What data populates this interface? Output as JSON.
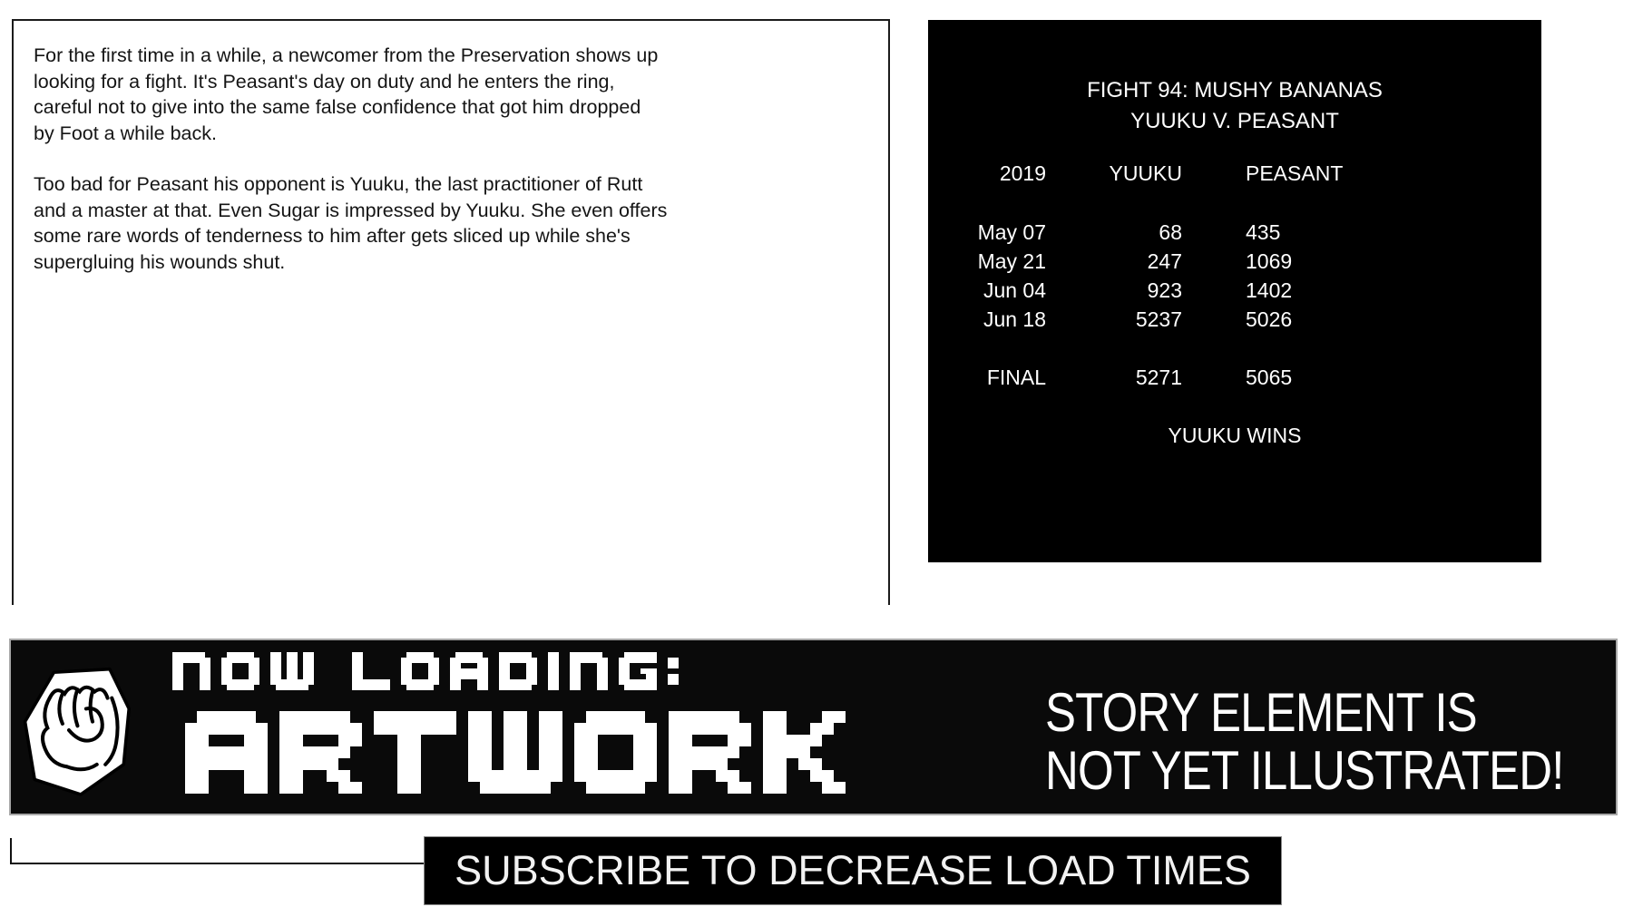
{
  "textbox": {
    "p1": [
      "For the first time in a while, a newcomer from the Preservation shows up",
      "looking for a fight. It's Peasant's day on duty and he enters the ring,",
      "careful not to give into the same false confidence that got him dropped",
      "by Foot a while back."
    ],
    "p2": [
      "Too bad for Peasant his opponent is Yuuku, the last practitioner of Rutt",
      "and a master at that. Even Sugar is impressed by Yuuku. She even offers",
      "some rare words of tenderness to him after gets sliced up while she's",
      "supergluing his wounds shut."
    ]
  },
  "scoreboard": {
    "title_line1": "FIGHT 94: MUSHY BANANAS",
    "title_line2": "YUUKU V. PEASANT",
    "columns": {
      "year": "2019",
      "fighter1": "YUUKU",
      "fighter2": "PEASANT"
    },
    "rows": [
      {
        "date": "May 07",
        "yuuku": "68",
        "peasant": "435"
      },
      {
        "date": "May 21",
        "yuuku": "247",
        "peasant": "1069"
      },
      {
        "date": "Jun 04",
        "yuuku": "923",
        "peasant": "1402"
      },
      {
        "date": "Jun 18",
        "yuuku": "5237",
        "peasant": "5026"
      }
    ],
    "final": {
      "label": "FINAL",
      "yuuku": "5271",
      "peasant": "5065"
    },
    "result": "YUUKU WINS"
  },
  "banner": {
    "now_loading": "NOW LOADING:",
    "artwork": "ARTWORK",
    "story_line1": "STORY ELEMENT IS",
    "story_line2": "NOT YET ILLUSTRATED!",
    "fist_icon": "fist-icon"
  },
  "subscribe": {
    "label": "SUBSCRIBE TO DECREASE LOAD TIMES"
  },
  "colors": {
    "page_bg": "#ffffff",
    "panel_bg": "#000000",
    "banner_bg": "#0a0a0a",
    "banner_border": "#a8a8a8",
    "text_dark": "#151515",
    "text_light": "#ffffff"
  }
}
